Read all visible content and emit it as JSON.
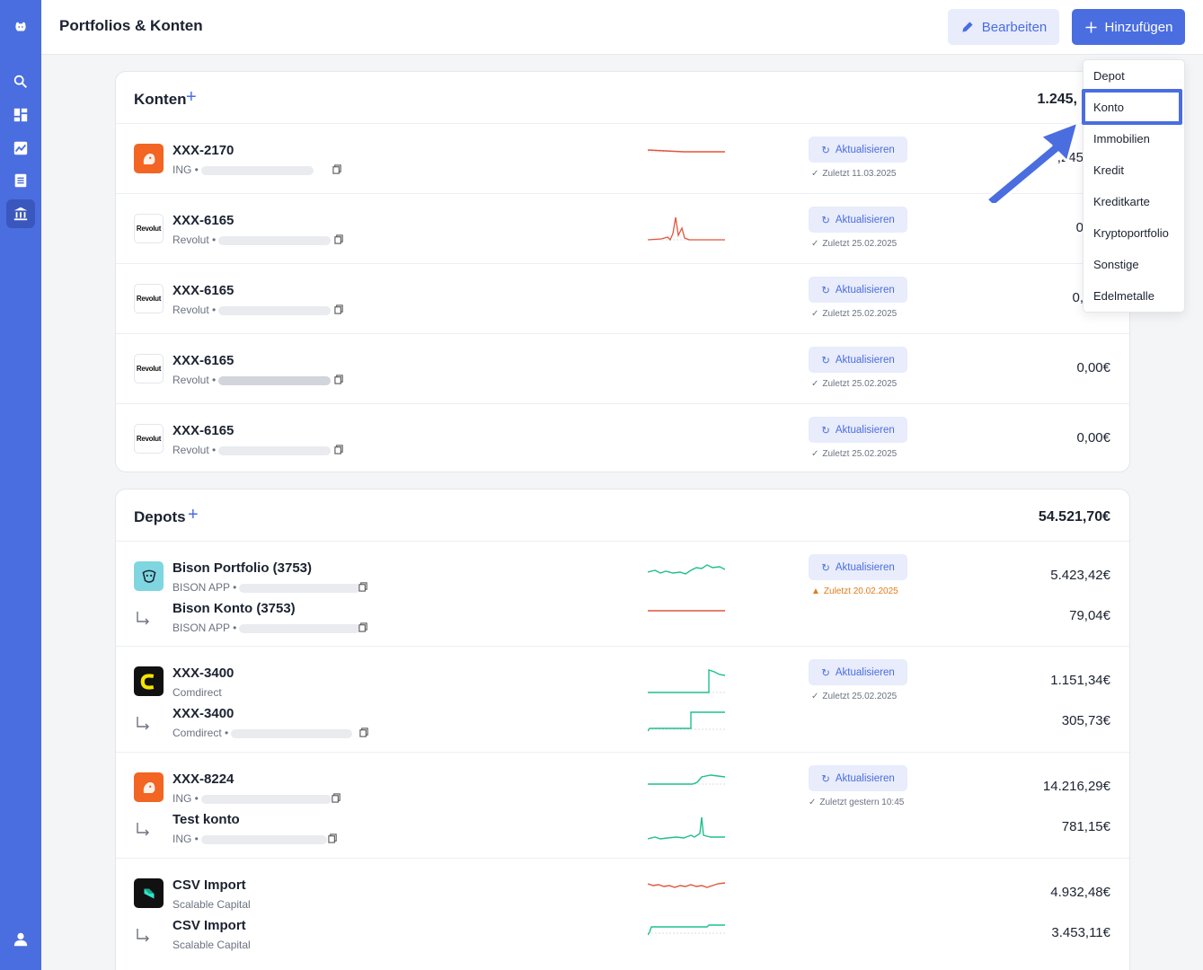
{
  "header": {
    "title": "Portfolios & Konten",
    "edit_label": "Bearbeiten",
    "add_label": "Hinzufügen"
  },
  "sidebar": {
    "items": [
      {
        "icon": "logo-icon"
      },
      {
        "icon": "search-icon"
      },
      {
        "icon": "dashboard-icon"
      },
      {
        "icon": "chart-icon"
      },
      {
        "icon": "list-icon"
      },
      {
        "icon": "bank-icon",
        "active": true
      },
      {
        "icon": "user-icon"
      }
    ]
  },
  "konten": {
    "title": "Konten",
    "total": "1.245,",
    "update_label": "Aktualisieren",
    "rows": [
      {
        "name": "XXX-2170",
        "bank": "ING •",
        "last": "Zuletzt 11.03.2025",
        "amount": "",
        "amount_partial": ",245"
      },
      {
        "name": "XXX-6165",
        "bank": "Revolut •",
        "last": "Zuletzt 25.02.2025",
        "amount": "",
        "amount_partial": "0"
      },
      {
        "name": "XXX-6165",
        "bank": "Revolut •",
        "last": "Zuletzt 25.02.2025",
        "amount": "",
        "amount_partial": "0,"
      },
      {
        "name": "XXX-6165",
        "bank": "Revolut •",
        "last": "Zuletzt 25.02.2025",
        "amount": "0,00€",
        "amount_partial": ""
      },
      {
        "name": "XXX-6165",
        "bank": "Revolut •",
        "last": "Zuletzt 25.02.2025",
        "amount": "0,00€",
        "amount_partial": ""
      }
    ]
  },
  "depots": {
    "title": "Depots",
    "total": "54.521,70€",
    "update_label": "Aktualisieren",
    "groups": [
      {
        "main": {
          "name": "Bison Portfolio (3753)",
          "bank": "BISON APP •",
          "amount": "5.423,42€"
        },
        "sub": {
          "name": "Bison Konto (3753)",
          "bank": "BISON APP •",
          "amount": "79,04€"
        },
        "last": "Zuletzt 20.02.2025",
        "warn": true
      },
      {
        "main": {
          "name": "XXX-3400",
          "bank": "Comdirect",
          "amount": "1.151,34€"
        },
        "sub": {
          "name": "XXX-3400",
          "bank": "Comdirect •",
          "amount": "305,73€"
        },
        "last": "Zuletzt 25.02.2025",
        "warn": false
      },
      {
        "main": {
          "name": "XXX-8224",
          "bank": "ING •",
          "amount": "14.216,29€"
        },
        "sub": {
          "name": "Test konto",
          "bank": "ING •",
          "amount": "781,15€"
        },
        "last": "Zuletzt gestern 10:45",
        "warn": false
      },
      {
        "main": {
          "name": "CSV Import",
          "bank": "Scalable Capital",
          "amount": "4.932,48€"
        },
        "sub": {
          "name": "CSV Import",
          "bank": "Scalable Capital",
          "amount": "3.453,11€"
        },
        "last": "",
        "warn": false
      }
    ]
  },
  "dropdown": {
    "items": [
      "Depot",
      "Konto",
      "Immobilien",
      "Kredit",
      "Kreditkarte",
      "Kryptoportfolio",
      "Sonstige",
      "Edelmetalle"
    ],
    "highlighted": "Konto"
  },
  "colors": {
    "accent": "#4a6de0",
    "up": "#1fbf8f",
    "down": "#e0553c",
    "warn": "#e07b1c"
  }
}
